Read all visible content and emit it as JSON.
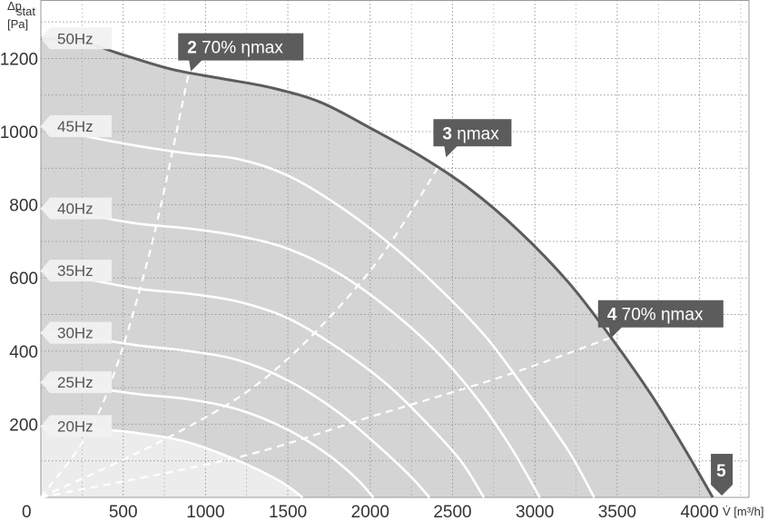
{
  "chart_data": {
    "type": "line",
    "xlabel": "V̇ [m³/h]",
    "ylabel_top": "Δp",
    "ylabel_sub": "stat",
    "ylabel_unit": "[Pa]",
    "xlim": [
      0,
      4300
    ],
    "ylim": [
      0,
      1360
    ],
    "x_ticks": [
      500,
      1000,
      1500,
      2000,
      2500,
      3000,
      3500,
      4000
    ],
    "x_tick_labels": [
      "500",
      "1000",
      "1500",
      "2000",
      "2500",
      "3000",
      "3500",
      "4000"
    ],
    "y_ticks": [
      200,
      400,
      600,
      800,
      1000,
      1200
    ],
    "y_tick_labels": [
      "200",
      "400",
      "600",
      "800",
      "1000",
      "1200"
    ],
    "origin_label": "0",
    "grid": true,
    "series": [
      {
        "name": "50Hz",
        "points": [
          [
            0,
            1255
          ],
          [
            250,
            1245
          ],
          [
            500,
            1210
          ],
          [
            800,
            1170
          ],
          [
            1100,
            1145
          ],
          [
            1400,
            1120
          ],
          [
            1700,
            1080
          ],
          [
            2000,
            1010
          ],
          [
            2300,
            935
          ],
          [
            2600,
            845
          ],
          [
            2900,
            730
          ],
          [
            3200,
            590
          ],
          [
            3450,
            445
          ],
          [
            3700,
            285
          ],
          [
            3900,
            140
          ],
          [
            4080,
            0
          ]
        ]
      },
      {
        "name": "45Hz",
        "points": [
          [
            0,
            1015
          ],
          [
            300,
            985
          ],
          [
            600,
            960
          ],
          [
            900,
            940
          ],
          [
            1200,
            925
          ],
          [
            1500,
            880
          ],
          [
            1800,
            800
          ],
          [
            2100,
            700
          ],
          [
            2400,
            580
          ],
          [
            2700,
            440
          ],
          [
            2950,
            290
          ],
          [
            3200,
            130
          ],
          [
            3360,
            0
          ]
        ]
      },
      {
        "name": "40Hz",
        "points": [
          [
            0,
            790
          ],
          [
            300,
            770
          ],
          [
            600,
            748
          ],
          [
            900,
            735
          ],
          [
            1200,
            715
          ],
          [
            1500,
            680
          ],
          [
            1800,
            615
          ],
          [
            2100,
            520
          ],
          [
            2400,
            400
          ],
          [
            2650,
            270
          ],
          [
            2850,
            140
          ],
          [
            3030,
            0
          ]
        ]
      },
      {
        "name": "35Hz",
        "points": [
          [
            0,
            620
          ],
          [
            300,
            595
          ],
          [
            600,
            570
          ],
          [
            900,
            557
          ],
          [
            1200,
            535
          ],
          [
            1500,
            490
          ],
          [
            1800,
            410
          ],
          [
            2100,
            310
          ],
          [
            2350,
            200
          ],
          [
            2550,
            100
          ],
          [
            2690,
            0
          ]
        ]
      },
      {
        "name": "30Hz",
        "points": [
          [
            0,
            450
          ],
          [
            300,
            435
          ],
          [
            600,
            415
          ],
          [
            900,
            400
          ],
          [
            1200,
            375
          ],
          [
            1500,
            320
          ],
          [
            1800,
            235
          ],
          [
            2050,
            140
          ],
          [
            2240,
            60
          ],
          [
            2360,
            0
          ]
        ]
      },
      {
        "name": "25Hz",
        "points": [
          [
            0,
            315
          ],
          [
            300,
            300
          ],
          [
            600,
            282
          ],
          [
            900,
            268
          ],
          [
            1200,
            240
          ],
          [
            1500,
            185
          ],
          [
            1750,
            115
          ],
          [
            1920,
            50
          ],
          [
            2020,
            0
          ]
        ]
      },
      {
        "name": "20Hz",
        "points": [
          [
            0,
            195
          ],
          [
            300,
            188
          ],
          [
            600,
            175
          ],
          [
            900,
            150
          ],
          [
            1200,
            100
          ],
          [
            1450,
            45
          ],
          [
            1590,
            0
          ]
        ]
      }
    ],
    "operating_lines": [
      {
        "name": "70% ηmax",
        "points": [
          [
            0,
            0
          ],
          [
            350,
            230
          ],
          [
            650,
            650
          ],
          [
            900,
            1165
          ]
        ]
      },
      {
        "name": "ηmax",
        "points": [
          [
            0,
            0
          ],
          [
            800,
            170
          ],
          [
            1400,
            340
          ],
          [
            2000,
            620
          ],
          [
            2450,
            930
          ]
        ]
      },
      {
        "name": "70% ηmax",
        "points": [
          [
            0,
            0
          ],
          [
            1200,
            110
          ],
          [
            2000,
            220
          ],
          [
            2800,
            330
          ],
          [
            3450,
            435
          ]
        ]
      }
    ],
    "callouts": [
      {
        "num": "2",
        "text": "70% ηmax",
        "at": [
          900,
          1165
        ]
      },
      {
        "num": "3",
        "text": "ηmax",
        "at": [
          2450,
          930
        ]
      },
      {
        "num": "4",
        "text": "70% ηmax",
        "at": [
          3450,
          435
        ]
      },
      {
        "num": "5",
        "text": "",
        "at": [
          4080,
          0
        ]
      }
    ],
    "colors": {
      "area": "#d4d4d4",
      "low_area": "#ececec",
      "max_curve": "#5c5c5c",
      "curves": "#ffffff",
      "callout_bg": "#5c5c5c",
      "label_bg": "#f1f1f1",
      "grid": "#9a9a9a"
    }
  }
}
